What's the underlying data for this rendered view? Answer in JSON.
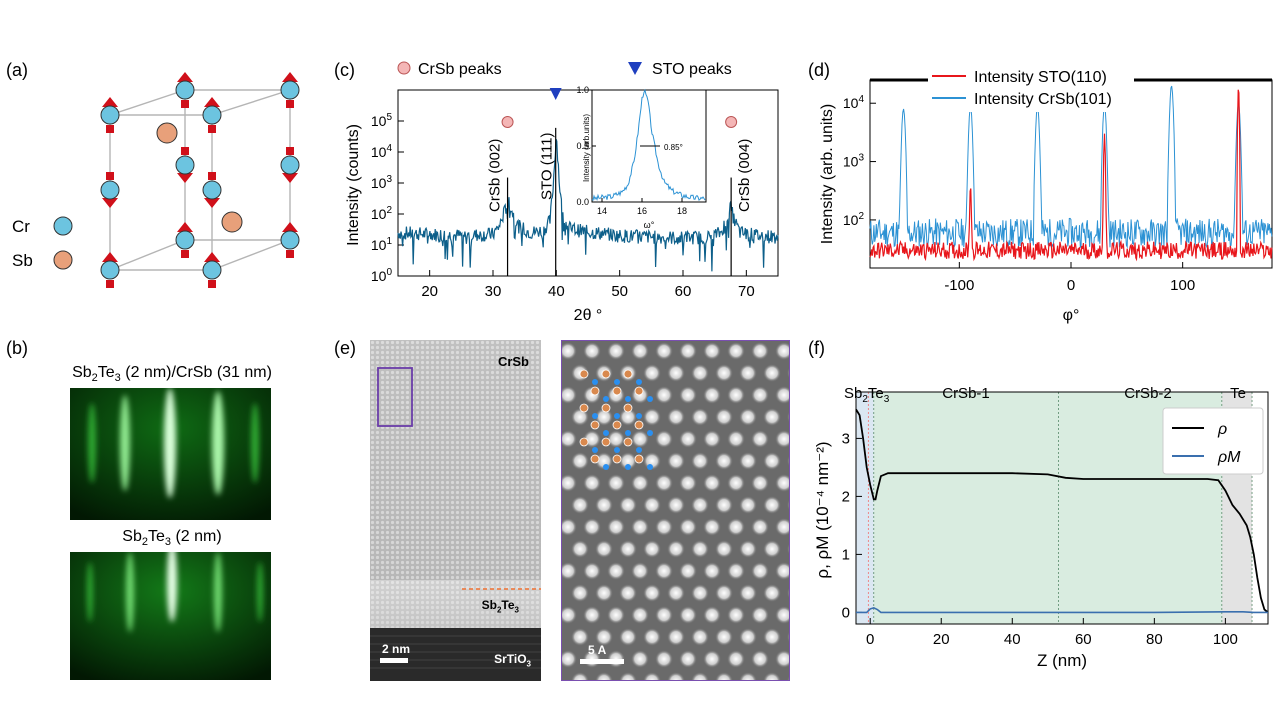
{
  "panels": {
    "a": {
      "label": "(a)",
      "legend": [
        {
          "text": "Cr",
          "color": "#6cc4e0"
        },
        {
          "text": "Sb",
          "color": "#e8a07a"
        }
      ]
    },
    "b": {
      "label": "(b)",
      "title1": "Sb2Te3 (2 nm)/CrSb (31 nm)",
      "title2": "Sb2Te3 (2 nm)"
    },
    "c": {
      "label": "(c)",
      "legend": [
        {
          "text": "CrSb peaks",
          "color": "#f4b6b6"
        },
        {
          "text": "STO peaks",
          "color": "#1f3fbf"
        }
      ],
      "xlabel": "2θ °",
      "ylabel": "Intensity (counts)",
      "peaks": [
        "CrSb (002)",
        "STO (111)",
        "CrSb (004)"
      ],
      "inset": {
        "xlabel": "ω°",
        "ylabel": "Intensity (arb.units)",
        "fwhm": "0.85°"
      }
    },
    "d": {
      "label": "(d)",
      "xlabel": "φ°",
      "ylabel": "Intensity (arb. units)",
      "legend": [
        {
          "text": "Intensity STO(110)",
          "color": "#e8161b"
        },
        {
          "text": "Intensity CrSb(101)",
          "color": "#2c92d4"
        }
      ]
    },
    "e": {
      "label": "(e)",
      "labels": {
        "crsb": "CrSb",
        "sbte": "Sb2Te3",
        "sto": "SrTiO3",
        "scale1": "2 nm",
        "scale2": "5 A"
      }
    },
    "f": {
      "label": "(f)",
      "regions": [
        "Sb2Te3",
        "CrSb-1",
        "CrSb-2",
        "Te"
      ],
      "xlabel": "Z (nm)",
      "ylabel": "ρ, ρM (10⁻⁴ nm⁻²)",
      "legend": [
        {
          "text": "ρ",
          "color": "#000000"
        },
        {
          "text": "ρM",
          "color": "#3a6fae"
        }
      ]
    }
  },
  "chart_data": [
    {
      "type": "line",
      "panel": "c",
      "xlabel": "2θ °",
      "ylabel": "Intensity (counts)",
      "xlim": [
        15,
        75
      ],
      "ylim": [
        1,
        1000000
      ],
      "yscale": "log",
      "xticks": [
        20,
        30,
        40,
        50,
        60,
        70
      ],
      "yticks": [
        1,
        10,
        100,
        1000,
        10000,
        100000
      ],
      "series": [
        {
          "color": "#0d5f8a",
          "x": [
            15,
            20,
            25,
            30,
            31,
            32,
            32.5,
            33,
            34,
            36,
            38,
            39,
            39.5,
            40,
            40.5,
            41,
            42,
            44,
            50,
            55,
            60,
            64,
            66,
            67,
            67.5,
            68,
            69,
            72,
            75
          ],
          "y": [
            25,
            22,
            20,
            22,
            40,
            150,
            260,
            120,
            40,
            25,
            30,
            60,
            800,
            40000,
            900,
            80,
            35,
            28,
            20,
            18,
            17,
            18,
            25,
            80,
            180,
            70,
            25,
            20,
            18
          ]
        }
      ],
      "markers": [
        {
          "x": 32.3,
          "kind": "CrSb"
        },
        {
          "x": 39.9,
          "kind": "STO"
        },
        {
          "x": 67.6,
          "kind": "CrSb"
        }
      ],
      "peak_labels": [
        {
          "x": 32.3,
          "text": "CrSb (002)"
        },
        {
          "x": 39.9,
          "text": "STO (111)"
        },
        {
          "x": 67.6,
          "text": "CrSb (004)"
        }
      ]
    },
    {
      "type": "line",
      "panel": "c-inset",
      "xlabel": "ω°",
      "ylabel": "Intensity (arb.units)",
      "xlim": [
        13.5,
        19.2
      ],
      "ylim": [
        0,
        1.0
      ],
      "xticks": [
        14,
        16,
        18
      ],
      "yticks": [
        0.0,
        0.5,
        1.0
      ],
      "series": [
        {
          "color": "#2c92d4",
          "x": [
            13.5,
            14,
            14.5,
            15,
            15.3,
            15.6,
            15.8,
            16,
            16.1,
            16.3,
            16.5,
            16.8,
            17.1,
            17.5,
            18,
            18.5,
            19.2
          ],
          "y": [
            0.03,
            0.04,
            0.05,
            0.09,
            0.16,
            0.36,
            0.62,
            0.92,
            1.0,
            0.9,
            0.62,
            0.35,
            0.18,
            0.1,
            0.06,
            0.04,
            0.03
          ]
        }
      ],
      "annotation": "0.85°"
    },
    {
      "type": "line",
      "panel": "d",
      "xlabel": "φ°",
      "ylabel": "Intensity (arb. units)",
      "xlim": [
        -180,
        180
      ],
      "ylim": [
        15,
        25000
      ],
      "yscale": "log",
      "xticks": [
        -100,
        0,
        100
      ],
      "yticks": [
        100,
        1000,
        10000
      ],
      "series": [
        {
          "name": "Intensity STO(110)",
          "color": "#e8161b",
          "peaks": [
            {
              "x": -90,
              "y": 400
            },
            {
              "x": 30,
              "y": 3000
            },
            {
              "x": 150,
              "y": 20000
            }
          ],
          "baseline": 30
        },
        {
          "name": "Intensity CrSb(101)",
          "color": "#2c92d4",
          "peaks": [
            {
              "x": -150,
              "y": 8000
            },
            {
              "x": -90,
              "y": 9000
            },
            {
              "x": -30,
              "y": 9000
            },
            {
              "x": 30,
              "y": 9000
            },
            {
              "x": 90,
              "y": 20000
            },
            {
              "x": 150,
              "y": 10000
            }
          ],
          "baseline": 60
        }
      ]
    },
    {
      "type": "line",
      "panel": "f",
      "xlabel": "Z (nm)",
      "ylabel": "ρ, ρM (10⁻⁴ nm⁻²)",
      "xlim": [
        -4,
        112
      ],
      "ylim": [
        -0.2,
        3.8
      ],
      "xticks": [
        0,
        20,
        40,
        60,
        80,
        100
      ],
      "yticks": [
        0,
        1,
        2,
        3
      ],
      "regions": [
        {
          "name": "Sb2Te3",
          "from": -4,
          "to": 1,
          "color": "#dbe7f2"
        },
        {
          "name": "CrSb-1",
          "from": 1,
          "to": 53,
          "color": "#d9ece0"
        },
        {
          "name": "CrSb-2",
          "from": 53,
          "to": 99,
          "color": "#d9ece0"
        },
        {
          "name": "Te",
          "from": 99,
          "to": 107.5,
          "color": "#e3e3e3"
        }
      ],
      "series": [
        {
          "name": "ρ",
          "color": "#000000",
          "x": [
            -4,
            -3,
            -2,
            -1,
            0,
            1,
            1.5,
            2,
            3,
            5,
            10,
            20,
            40,
            50,
            55,
            60,
            80,
            95,
            98,
            100,
            102,
            104,
            106,
            107,
            108,
            109,
            110,
            111,
            112
          ],
          "y": [
            3.5,
            3.4,
            3.0,
            2.5,
            2.2,
            1.95,
            1.95,
            2.1,
            2.35,
            2.4,
            2.4,
            2.4,
            2.4,
            2.38,
            2.32,
            2.3,
            2.3,
            2.3,
            2.28,
            2.1,
            1.85,
            1.7,
            1.5,
            1.3,
            1.0,
            0.6,
            0.25,
            0.05,
            0.0
          ]
        },
        {
          "name": "ρM",
          "color": "#3a6fae",
          "x": [
            -4,
            -1,
            0,
            1,
            2,
            3,
            5,
            20,
            50,
            80,
            100,
            105,
            108,
            112
          ],
          "y": [
            0.0,
            0.0,
            0.06,
            0.08,
            0.05,
            0.0,
            0.0,
            0.0,
            0.0,
            0.0,
            0.01,
            0.01,
            0.0,
            0.0
          ]
        }
      ]
    }
  ]
}
